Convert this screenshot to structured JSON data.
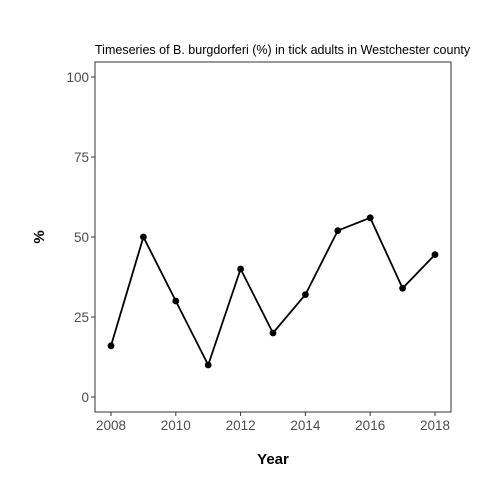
{
  "chart_data": {
    "type": "line",
    "title": "Timeseries of B. burgdorferi (%) in tick adults in Westchester county",
    "xlabel": "Year",
    "ylabel": "%",
    "x": [
      2008,
      2009,
      2010,
      2011,
      2012,
      2013,
      2014,
      2015,
      2016,
      2017,
      2018
    ],
    "series": [
      {
        "values": [
          16,
          50,
          30,
          10,
          40,
          20,
          32,
          52,
          56,
          34,
          44.5
        ]
      }
    ],
    "xlim": [
      2008,
      2018
    ],
    "ylim": [
      0,
      100
    ],
    "xticks": [
      2008,
      2010,
      2012,
      2014,
      2016,
      2018
    ],
    "yticks": [
      0,
      25,
      50,
      75,
      100
    ],
    "grid": false,
    "legend": "none",
    "colors": {
      "line": "#000000",
      "point": "#000000",
      "panel_border": "#333333",
      "tick_label": "#4d4d4d"
    }
  }
}
